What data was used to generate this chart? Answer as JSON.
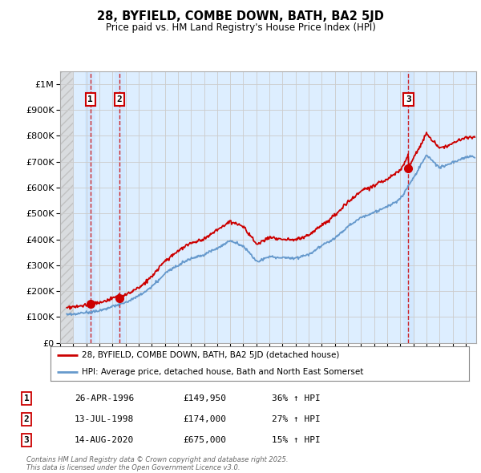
{
  "title": "28, BYFIELD, COMBE DOWN, BATH, BA2 5JD",
  "subtitle": "Price paid vs. HM Land Registry's House Price Index (HPI)",
  "ylabel_ticks": [
    "£0",
    "£100K",
    "£200K",
    "£300K",
    "£400K",
    "£500K",
    "£600K",
    "£700K",
    "£800K",
    "£900K",
    "£1M"
  ],
  "ytick_values": [
    0,
    100000,
    200000,
    300000,
    400000,
    500000,
    600000,
    700000,
    800000,
    900000,
    1000000
  ],
  "ylim": [
    0,
    1050000
  ],
  "xlim_start": 1994.0,
  "xlim_end": 2025.8,
  "sale_dates": [
    1996.32,
    1998.54,
    2020.62
  ],
  "sale_prices": [
    149950,
    174000,
    675000
  ],
  "sale_labels": [
    "1",
    "2",
    "3"
  ],
  "legend_line1": "28, BYFIELD, COMBE DOWN, BATH, BA2 5JD (detached house)",
  "legend_line2": "HPI: Average price, detached house, Bath and North East Somerset",
  "table_data": [
    [
      "1",
      "26-APR-1996",
      "£149,950",
      "36% ↑ HPI"
    ],
    [
      "2",
      "13-JUL-1998",
      "£174,000",
      "27% ↑ HPI"
    ],
    [
      "3",
      "14-AUG-2020",
      "£675,000",
      "15% ↑ HPI"
    ]
  ],
  "footer": "Contains HM Land Registry data © Crown copyright and database right 2025.\nThis data is licensed under the Open Government Licence v3.0.",
  "red_color": "#cc0000",
  "blue_color": "#6699cc",
  "grid_color": "#cccccc",
  "background_color": "#ddeeff",
  "highlight_color": "#cce0ff"
}
